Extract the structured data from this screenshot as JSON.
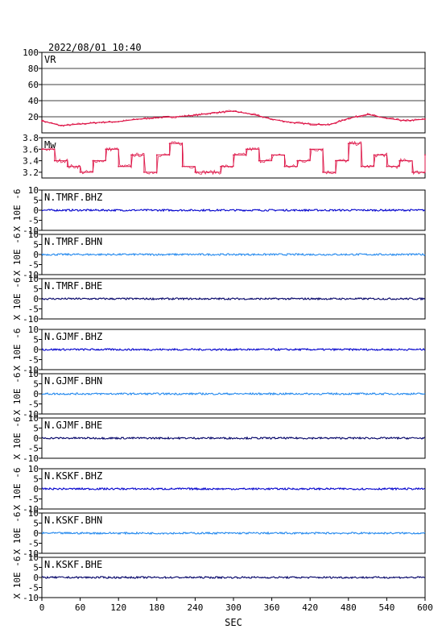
{
  "header": {
    "timestamp": "2022/08/01 10:40"
  },
  "chart_data": {
    "type": "line",
    "xlabel": "SEC",
    "xlim": [
      0,
      600
    ],
    "x_ticks": [
      "0",
      "60",
      "120",
      "180",
      "240",
      "300",
      "360",
      "420",
      "480",
      "540",
      "600"
    ],
    "colors": {
      "vr": "#dd1144",
      "mw": "#dd1144",
      "bhz": "#0000cc",
      "bhn": "#2288ee",
      "bhe": "#000066"
    },
    "vr": {
      "label": "VR",
      "ylim": [
        0,
        100
      ],
      "y_ticks": [
        "100",
        "80",
        "60",
        "40",
        "20"
      ],
      "x": [
        0,
        30,
        60,
        90,
        120,
        150,
        180,
        210,
        240,
        270,
        300,
        330,
        360,
        390,
        420,
        450,
        480,
        510,
        540,
        570,
        600
      ],
      "values": [
        15,
        9,
        11,
        13,
        14,
        17,
        19,
        20,
        22,
        25,
        27,
        23,
        17,
        13,
        11,
        10,
        18,
        23,
        18,
        15,
        17
      ]
    },
    "mw": {
      "label": "Mw",
      "ylim": [
        3.1,
        3.8
      ],
      "y_ticks": [
        "3.8",
        "3.6",
        "3.4",
        "3.2"
      ],
      "x": [
        0,
        20,
        40,
        60,
        80,
        100,
        120,
        140,
        160,
        180,
        200,
        220,
        240,
        260,
        280,
        300,
        320,
        340,
        360,
        380,
        400,
        420,
        440,
        460,
        480,
        500,
        520,
        540,
        560,
        580,
        600
      ],
      "values": [
        3.6,
        3.4,
        3.3,
        3.2,
        3.4,
        3.6,
        3.3,
        3.5,
        3.2,
        3.5,
        3.7,
        3.3,
        3.2,
        3.2,
        3.3,
        3.5,
        3.6,
        3.4,
        3.5,
        3.3,
        3.4,
        3.6,
        3.2,
        3.4,
        3.7,
        3.3,
        3.5,
        3.3,
        3.4,
        3.2,
        3.5
      ]
    },
    "waveforms": {
      "ylabel": "X 10E -6",
      "ylim": [
        -10,
        10
      ],
      "y_ticks": [
        "10",
        "5",
        "0",
        "-5",
        "-10"
      ],
      "values": [
        0,
        0,
        0,
        0,
        0,
        0,
        0,
        0,
        0
      ],
      "traces": [
        {
          "label": "N.TMRF.BHZ",
          "component": "bhz"
        },
        {
          "label": "N.TMRF.BHN",
          "component": "bhn"
        },
        {
          "label": "N.TMRF.BHE",
          "component": "bhe"
        },
        {
          "label": "N.GJMF.BHZ",
          "component": "bhz"
        },
        {
          "label": "N.GJMF.BHN",
          "component": "bhn"
        },
        {
          "label": "N.GJMF.BHE",
          "component": "bhe"
        },
        {
          "label": "N.KSKF.BHZ",
          "component": "bhz"
        },
        {
          "label": "N.KSKF.BHN",
          "component": "bhn"
        },
        {
          "label": "N.KSKF.BHE",
          "component": "bhe"
        }
      ]
    }
  }
}
